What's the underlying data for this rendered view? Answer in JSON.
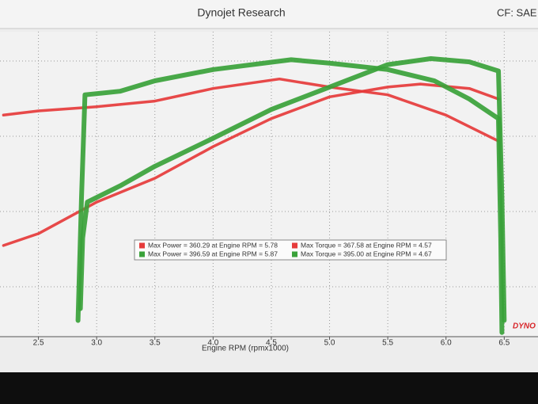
{
  "chart_data": {
    "type": "line",
    "title": "Dynojet Research",
    "corner_label": "CF: SAE S",
    "xlabel": "Engine RPM (rpmx1000)",
    "logo": "DYNO",
    "xlim": [
      2.17,
      6.79
    ],
    "ylim": [
      0,
      435
    ],
    "xticks": [
      2.5,
      {
        "value": 3,
        "label": "3.0"
      },
      3.5,
      {
        "value": 4,
        "label": "4.0"
      },
      4.5,
      {
        "value": 5,
        "label": "5.0"
      },
      5.5,
      {
        "value": 6,
        "label": "6.0"
      },
      6.5
    ],
    "grid": true,
    "series": [
      {
        "name": "Max Power = 360.29 at Engine RPM = 5.78",
        "color": "#e63b3b",
        "x": [
          2.2,
          2.5,
          3.0,
          3.5,
          4.0,
          4.5,
          5.0,
          5.5,
          5.78,
          6.2,
          6.45
        ],
        "values": [
          130,
          147,
          192,
          226,
          271,
          311,
          342,
          356,
          360.29,
          354,
          339
        ]
      },
      {
        "name": "Max Torque = 367.58 at Engine RPM = 4.57",
        "color": "#e63b3b",
        "x": [
          2.2,
          2.5,
          3.0,
          3.5,
          4.0,
          4.57,
          5.0,
          5.5,
          6.0,
          6.45
        ],
        "values": [
          316,
          322,
          328,
          336,
          354,
          367.58,
          356,
          345,
          316,
          279
        ]
      },
      {
        "name": "Max Power = 396.59 at Engine RPM = 5.87",
        "color": "#3aa23a",
        "x": [
          2.86,
          2.88,
          2.92,
          3.2,
          3.5,
          4.0,
          4.5,
          5.0,
          5.5,
          5.87,
          6.2,
          6.45,
          6.48,
          6.5
        ],
        "values": [
          40,
          141,
          192,
          215,
          243,
          283,
          324,
          356,
          388,
          396.59,
          392,
          379,
          198,
          23
        ]
      },
      {
        "name": "Max Torque = 395.00 at Engine RPM = 4.67",
        "color": "#3aa23a",
        "x": [
          2.84,
          2.87,
          2.9,
          3.2,
          3.5,
          4.0,
          4.67,
          5.0,
          5.5,
          5.9,
          6.2,
          6.45,
          6.47,
          6.48
        ],
        "values": [
          23,
          198,
          345,
          350,
          365,
          381,
          395,
          390,
          381,
          365,
          339,
          311,
          141,
          6
        ]
      }
    ]
  }
}
